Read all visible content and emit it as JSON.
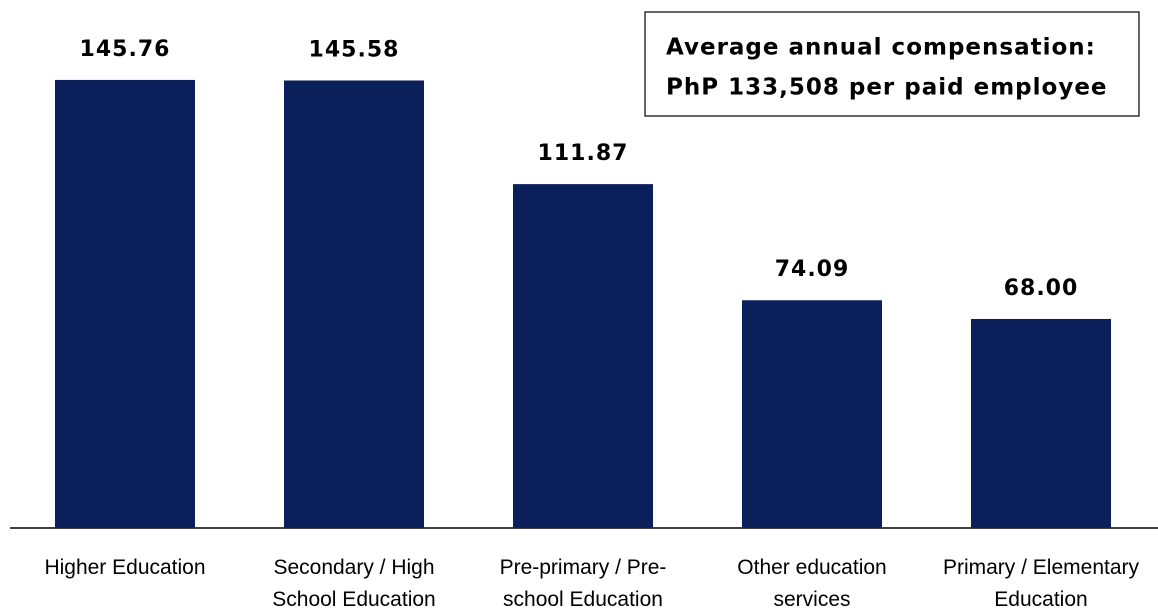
{
  "chart_data": {
    "type": "bar",
    "categories": [
      "Higher Education",
      "Secondary / High\nSchool Education",
      "Pre-primary / Pre-\nschool Education",
      "Other education\nservices",
      "Primary / Elementary\nEducation"
    ],
    "values": [
      145.76,
      145.58,
      111.87,
      74.09,
      68.0
    ],
    "value_labels": [
      "145.76",
      "145.58",
      "111.87",
      "74.09",
      "68.00"
    ],
    "color": "#0b1f5b",
    "annotation": [
      "Average annual compensation:",
      "PhP 133,508 per paid employee"
    ]
  }
}
